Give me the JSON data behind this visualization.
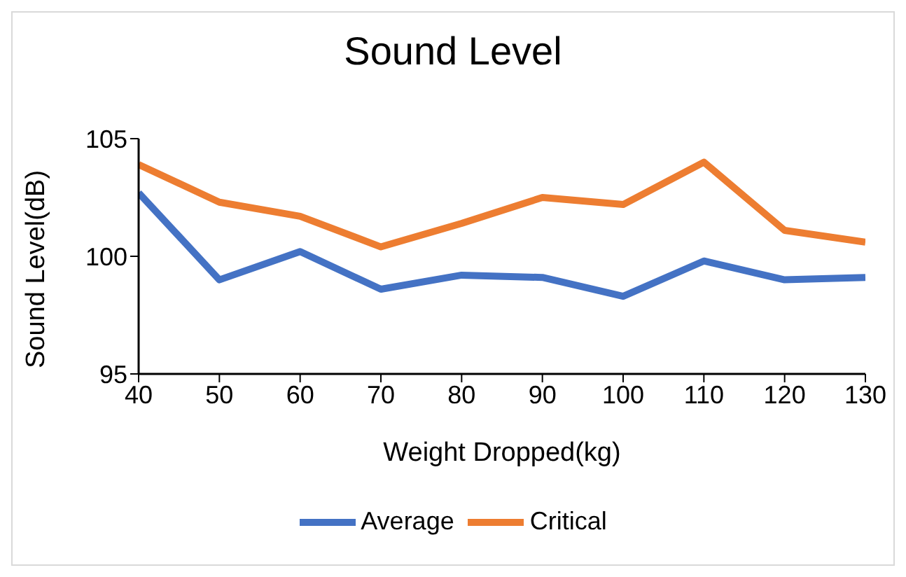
{
  "chart_data": {
    "type": "line",
    "title": "Sound Level",
    "xlabel": "Weight Dropped(kg)",
    "ylabel": "Sound Level(dB)",
    "x": [
      40,
      50,
      60,
      70,
      80,
      90,
      100,
      110,
      120,
      130
    ],
    "series": [
      {
        "name": "Average",
        "color": "#4472c4",
        "values": [
          102.7,
          99.0,
          100.2,
          98.6,
          99.2,
          99.1,
          98.3,
          99.8,
          99.0,
          99.1
        ]
      },
      {
        "name": "Critical",
        "color": "#ed7d31",
        "values": [
          103.9,
          102.3,
          101.7,
          100.4,
          101.4,
          102.5,
          102.2,
          104.0,
          101.1,
          100.6
        ]
      }
    ],
    "xlim": [
      40,
      130
    ],
    "xticks": [
      40,
      50,
      60,
      70,
      80,
      90,
      100,
      110,
      120,
      130
    ],
    "ylim": [
      95,
      105
    ],
    "yticks": [
      95,
      100,
      105
    ],
    "grid": false,
    "legend": "bottom",
    "marker": "none",
    "line_style": "solid"
  }
}
